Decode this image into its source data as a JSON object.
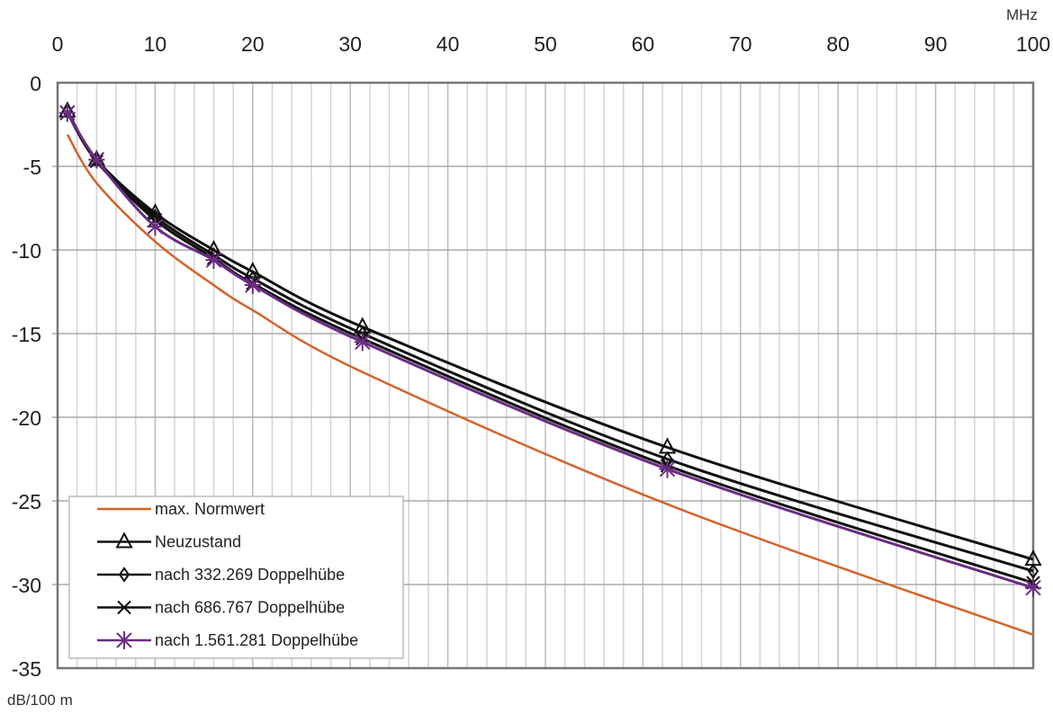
{
  "chart_data": {
    "type": "line",
    "title": "",
    "xlabel": "MHz",
    "ylabel": "dB/100 m",
    "xlim": [
      0,
      100
    ],
    "ylim": [
      -35,
      0
    ],
    "x_axis_position": "top",
    "x_ticks": [
      "0",
      "10",
      "20",
      "30",
      "40",
      "50",
      "60",
      "70",
      "80",
      "90",
      "100"
    ],
    "y_ticks": [
      "0",
      "-5",
      "-10",
      "-15",
      "-20",
      "-25",
      "-30",
      "-35"
    ],
    "grid": true,
    "legend_placement": "bottom-left",
    "x": [
      1,
      4,
      10,
      16,
      20,
      31.25,
      62.5,
      100
    ],
    "series": [
      {
        "name": "max. Normwert",
        "color": "#d2642a",
        "marker": "none",
        "values": [
          -3.1,
          -6.0,
          -9.5,
          -12.1,
          -13.6,
          -17.3,
          -25.2,
          -33.0
        ]
      },
      {
        "name": "Neuzustand",
        "color": "#111111",
        "marker": "triangle",
        "values": [
          -1.7,
          -4.6,
          -7.8,
          -10.0,
          -11.3,
          -14.6,
          -21.8,
          -28.5
        ]
      },
      {
        "name": "nach    332.269 Doppelhübe",
        "color": "#111111",
        "marker": "diamond",
        "values": [
          -1.7,
          -4.6,
          -8.0,
          -10.3,
          -11.7,
          -15.0,
          -22.5,
          -29.2
        ]
      },
      {
        "name": "nach    686.767 Doppelhübe",
        "color": "#111111",
        "marker": "x",
        "values": [
          -1.8,
          -4.7,
          -8.2,
          -10.5,
          -12.0,
          -15.3,
          -22.9,
          -29.9
        ]
      },
      {
        "name": "nach 1.561.281 Doppelhübe",
        "color": "#6a2c82",
        "marker": "star",
        "values": [
          -1.8,
          -4.6,
          -8.6,
          -10.6,
          -12.1,
          -15.5,
          -23.1,
          -30.2
        ]
      }
    ]
  }
}
